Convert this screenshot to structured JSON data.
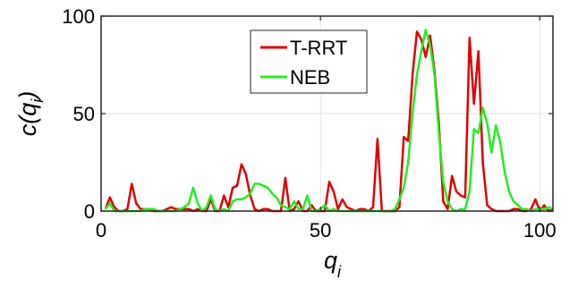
{
  "chart_data": {
    "type": "line",
    "xlabel": {
      "base": "q",
      "sub": "i"
    },
    "ylabel": {
      "prefix": "c(q",
      "sub": "i",
      "suffix": ")"
    },
    "xlim": [
      0,
      103
    ],
    "ylim": [
      0,
      100
    ],
    "xticks": [
      0,
      50,
      100
    ],
    "yticks": [
      0,
      50,
      100
    ],
    "grid": true,
    "legend_position": "top-center",
    "series": [
      {
        "name": "T-RRT",
        "color": "#e00000",
        "x": [
          1,
          2,
          3,
          4,
          5,
          6,
          7,
          8,
          9,
          10,
          11,
          12,
          13,
          14,
          15,
          16,
          17,
          18,
          19,
          20,
          21,
          22,
          23,
          24,
          25,
          26,
          27,
          28,
          29,
          30,
          31,
          32,
          33,
          34,
          35,
          36,
          37,
          38,
          39,
          40,
          41,
          42,
          43,
          44,
          45,
          46,
          47,
          48,
          49,
          50,
          51,
          52,
          53,
          54,
          55,
          56,
          57,
          58,
          59,
          60,
          61,
          62,
          63,
          64,
          65,
          66,
          67,
          68,
          69,
          70,
          71,
          72,
          73,
          74,
          75,
          76,
          77,
          78,
          79,
          80,
          81,
          82,
          83,
          84,
          85,
          86,
          87,
          88,
          89,
          90,
          91,
          92,
          93,
          94,
          95,
          96,
          97,
          98,
          99,
          100,
          101,
          102,
          103
        ],
        "y": [
          1,
          7,
          2,
          0,
          0,
          1,
          14,
          4,
          1,
          1,
          1,
          0,
          0,
          0,
          1,
          2,
          1,
          1,
          1,
          1,
          0,
          1,
          0,
          0,
          6,
          0,
          0,
          8,
          2,
          12,
          13,
          24,
          19,
          8,
          1,
          0,
          1,
          1,
          0,
          0,
          0,
          17,
          0,
          1,
          5,
          0,
          0,
          3,
          0,
          0,
          0,
          15,
          10,
          1,
          6,
          2,
          1,
          0,
          1,
          1,
          0,
          2,
          37,
          0,
          0,
          0,
          0,
          2,
          38,
          36,
          70,
          92,
          88,
          79,
          90,
          72,
          45,
          5,
          1,
          18,
          10,
          8,
          7,
          89,
          55,
          82,
          25,
          3,
          1,
          0,
          0,
          0,
          0,
          1,
          1,
          0,
          0,
          1,
          6,
          0,
          3,
          0,
          1
        ]
      },
      {
        "name": "NEB",
        "color": "#22ee22",
        "x": [
          1,
          2,
          3,
          4,
          5,
          6,
          7,
          8,
          9,
          10,
          11,
          12,
          13,
          14,
          15,
          16,
          17,
          18,
          19,
          20,
          21,
          22,
          23,
          24,
          25,
          26,
          27,
          28,
          29,
          30,
          31,
          32,
          33,
          34,
          35,
          36,
          37,
          38,
          39,
          40,
          41,
          42,
          43,
          44,
          45,
          46,
          47,
          48,
          49,
          50,
          51,
          52,
          53,
          54,
          55,
          56,
          57,
          58,
          59,
          60,
          61,
          62,
          63,
          64,
          65,
          66,
          67,
          68,
          69,
          70,
          71,
          72,
          73,
          74,
          75,
          76,
          77,
          78,
          79,
          80,
          81,
          82,
          83,
          84,
          85,
          86,
          87,
          88,
          89,
          90,
          91,
          92,
          93,
          94,
          95,
          96,
          97,
          98,
          99,
          100,
          101,
          102,
          103
        ],
        "y": [
          1,
          4,
          0,
          0,
          0,
          0,
          0,
          0,
          0,
          1,
          1,
          1,
          0,
          0,
          0,
          0,
          0,
          1,
          2,
          4,
          12,
          4,
          0,
          2,
          8,
          1,
          0,
          1,
          0,
          5,
          6,
          6,
          7,
          9,
          14,
          14,
          13,
          12,
          9,
          7,
          3,
          2,
          1,
          5,
          1,
          1,
          8,
          0,
          0,
          1,
          3,
          0,
          1,
          0,
          0,
          0,
          0,
          0,
          0,
          0,
          0,
          0,
          0,
          0,
          0,
          0,
          1,
          6,
          12,
          25,
          50,
          70,
          82,
          93,
          85,
          70,
          40,
          15,
          5,
          1,
          0,
          1,
          1,
          10,
          42,
          40,
          53,
          45,
          30,
          44,
          35,
          20,
          10,
          5,
          3,
          1,
          1,
          0,
          1,
          1,
          1,
          2,
          1
        ]
      }
    ]
  }
}
